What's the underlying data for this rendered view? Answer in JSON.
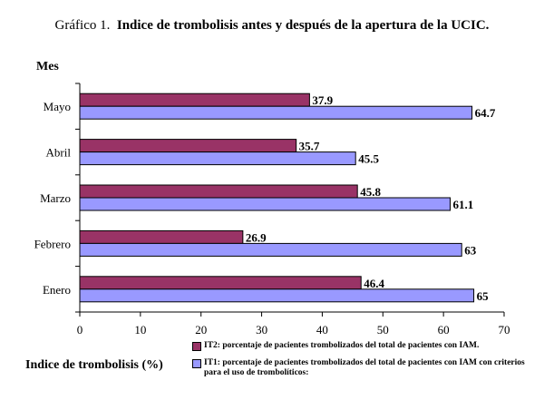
{
  "title_prefix": "Gráfico 1.",
  "title_main": "Indice de trombolisis antes y después de la apertura de la UCIC.",
  "colors": {
    "it2": "#993366",
    "it1": "#9999ff",
    "axis": "#000000"
  },
  "chart_data": {
    "type": "bar",
    "orientation": "horizontal",
    "categories": [
      "Mayo",
      "Abril",
      "Marzo",
      "Febrero",
      "Enero"
    ],
    "series": [
      {
        "name": "IT2: porcentaje de pacientes trombolizados del total de pacientes con IAM.",
        "values": [
          37.9,
          35.7,
          45.8,
          26.9,
          46.4
        ]
      },
      {
        "name": "IT1: porcentaje de pacientes trombolizados del total de pacientes con IAM con criterios para el uso de trombolíticos:",
        "values": [
          64.7,
          45.5,
          61.1,
          63,
          65
        ]
      }
    ],
    "value_labels": [
      [
        "37.9",
        "35.7",
        "45.8",
        "26.9",
        "46.4"
      ],
      [
        "64.7",
        "45.5",
        "61.1",
        "63",
        "65"
      ]
    ],
    "xlim": [
      0,
      70
    ],
    "xticks": [
      "0",
      "10",
      "20",
      "30",
      "40",
      "50",
      "60",
      "70"
    ],
    "xlabel": "Indice de trombolisis (%)",
    "ylabel": "Mes",
    "grid": false,
    "legend_position": "bottom-right"
  }
}
